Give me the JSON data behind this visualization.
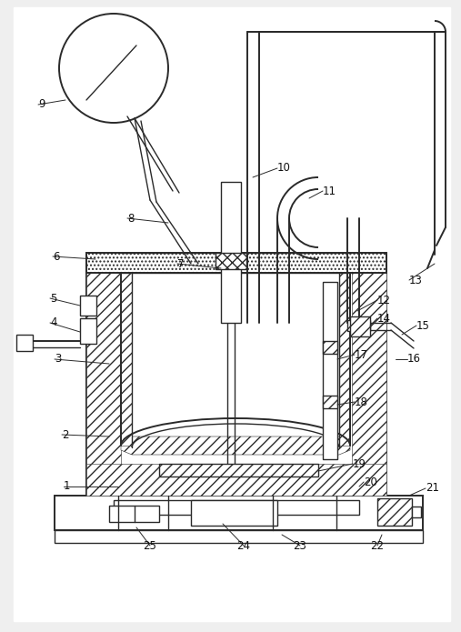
{
  "bg_color": "#f0f0f0",
  "line_color": "#2a2a2a",
  "fig_width": 5.07,
  "fig_height": 6.95,
  "lw": 1.0,
  "lw2": 1.4
}
